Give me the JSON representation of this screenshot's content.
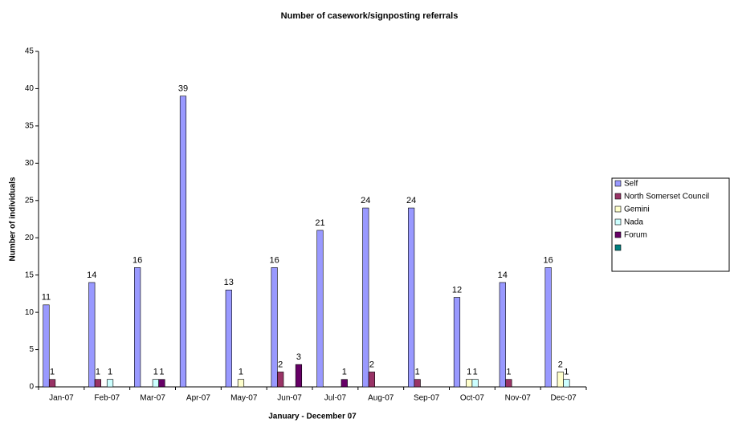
{
  "chart_data": {
    "type": "bar",
    "title": "Number of casework/signposting referrals",
    "x_label": "January - December 07",
    "y_label": "Number of individuals",
    "categories": [
      "Jan-07",
      "Feb-07",
      "Mar-07",
      "Apr-07",
      "May-07",
      "Jun-07",
      "Jul-07",
      "Aug-07",
      "Sep-07",
      "Oct-07",
      "Nov-07",
      "Dec-07"
    ],
    "series": [
      {
        "name": "Self",
        "color": "#9999ff",
        "values": [
          11,
          14,
          16,
          39,
          13,
          16,
          21,
          24,
          24,
          12,
          14,
          16
        ]
      },
      {
        "name": "North Somerset Council",
        "color": "#993366",
        "values": [
          1,
          1,
          null,
          null,
          null,
          2,
          null,
          2,
          1,
          null,
          1,
          null
        ]
      },
      {
        "name": "Gemini",
        "color": "#ffffcc",
        "values": [
          null,
          null,
          null,
          null,
          1,
          null,
          null,
          null,
          null,
          1,
          null,
          2
        ]
      },
      {
        "name": "Nada",
        "color": "#ccffff",
        "values": [
          null,
          1,
          1,
          null,
          null,
          null,
          null,
          null,
          null,
          1,
          null,
          1
        ]
      },
      {
        "name": "Forum",
        "color": "#660066",
        "values": [
          null,
          null,
          1,
          null,
          null,
          3,
          1,
          null,
          null,
          null,
          null,
          null
        ]
      },
      {
        "name": null,
        "color": "#008080",
        "values": [
          null,
          null,
          null,
          null,
          null,
          null,
          null,
          null,
          null,
          null,
          null,
          null
        ]
      }
    ],
    "ylim": [
      0,
      45
    ],
    "yticks": [
      0,
      5,
      10,
      15,
      20,
      25,
      30,
      35,
      40,
      45
    ],
    "grid": false,
    "legend": "right"
  }
}
